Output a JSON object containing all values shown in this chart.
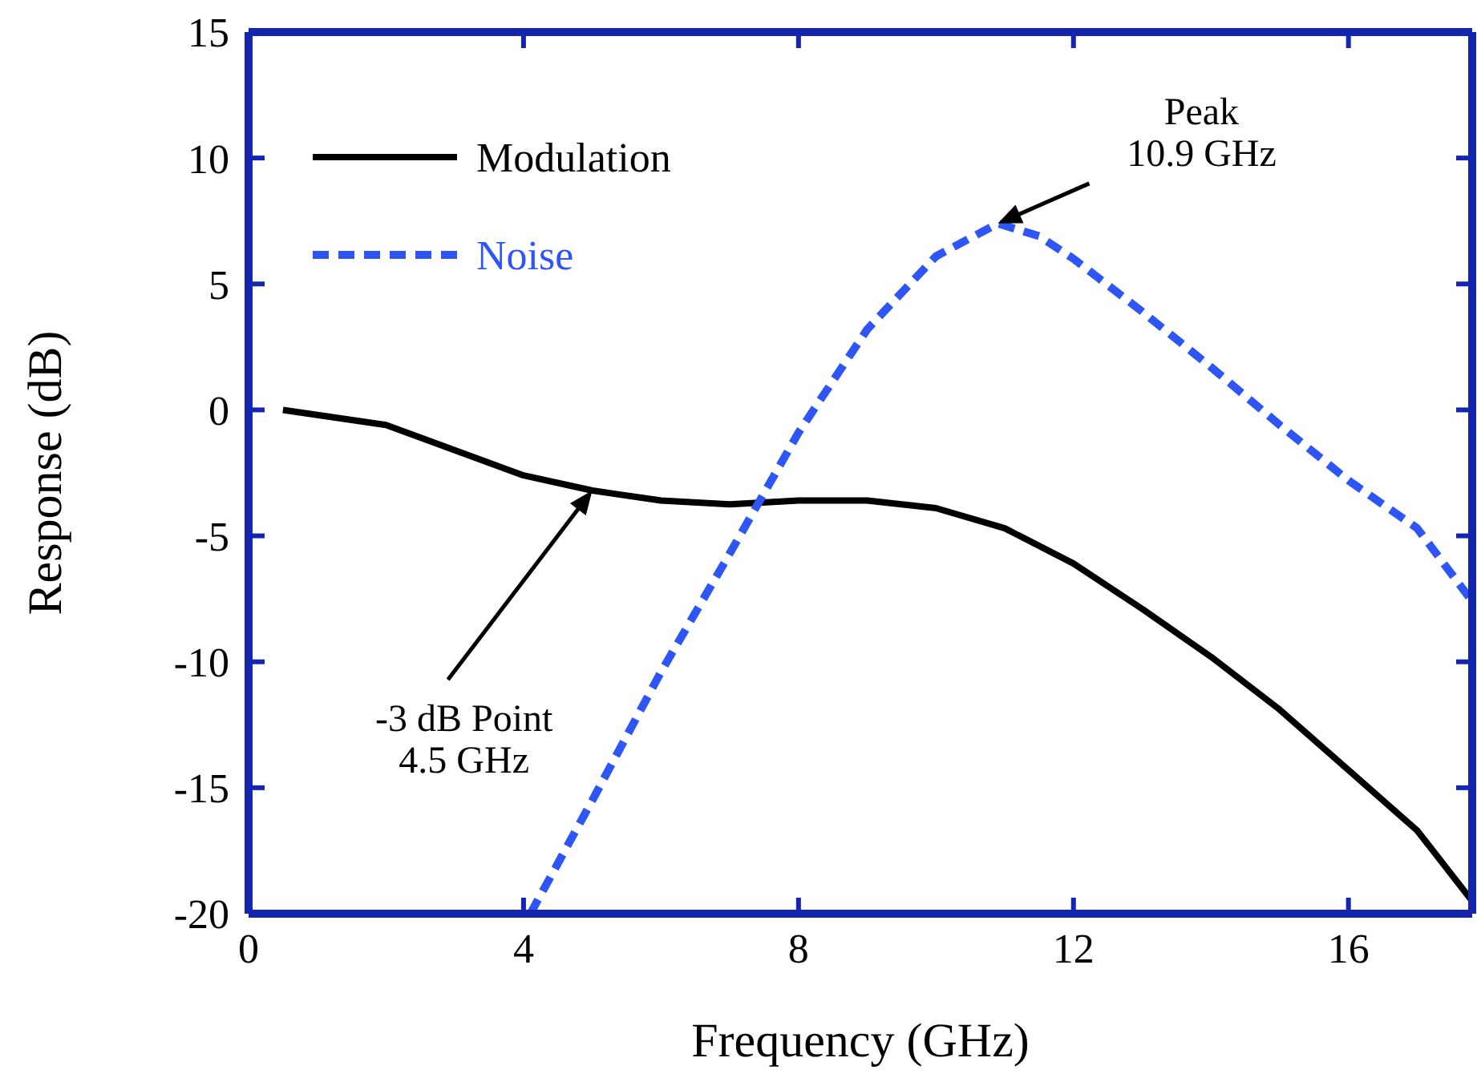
{
  "chart_data": {
    "type": "line",
    "xlabel": "Frequency (GHz)",
    "ylabel": "Response (dB)",
    "xlim": [
      0,
      17.8
    ],
    "xticks": [
      0,
      4,
      8,
      12,
      16
    ],
    "ylim": [
      -20,
      15
    ],
    "yticks": [
      -20,
      -15,
      -10,
      -5,
      0,
      5,
      10,
      15
    ],
    "grid": false,
    "legend": "top left",
    "marker": "none",
    "series": [
      {
        "name": "Modulation",
        "color": "#000000",
        "line_style": "solid",
        "x": [
          0.5,
          2,
          4,
          5,
          6,
          7,
          8,
          9,
          10,
          11,
          12,
          13,
          14,
          15,
          16,
          17,
          17.8
        ],
        "values": [
          0,
          -0.6,
          -2.6,
          -3.2,
          -3.6,
          -3.75,
          -3.6,
          -3.6,
          -3.9,
          -4.7,
          -6.1,
          -7.9,
          -9.8,
          -11.9,
          -14.3,
          -16.7,
          -19.5
        ]
      },
      {
        "name": "Noise",
        "color": "#2e55f5",
        "line_style": "dashed",
        "x": [
          4.1,
          5,
          6,
          7,
          8,
          9,
          10,
          10.9,
          11.5,
          12,
          13,
          14,
          15,
          16,
          17,
          17.8
        ],
        "values": [
          -20,
          -15.5,
          -10.4,
          -5.7,
          -0.9,
          3.2,
          6.1,
          7.4,
          6.9,
          6,
          3.9,
          1.7,
          -0.6,
          -2.8,
          -4.7,
          -7.6
        ]
      }
    ],
    "annotations": [
      {
        "text": "Peak\n10.9 GHz",
        "x": 10.9,
        "y": 7.4
      },
      {
        "text": "-3 dB Point\n4.5 GHz",
        "x": 5,
        "y": -3.2
      }
    ]
  }
}
